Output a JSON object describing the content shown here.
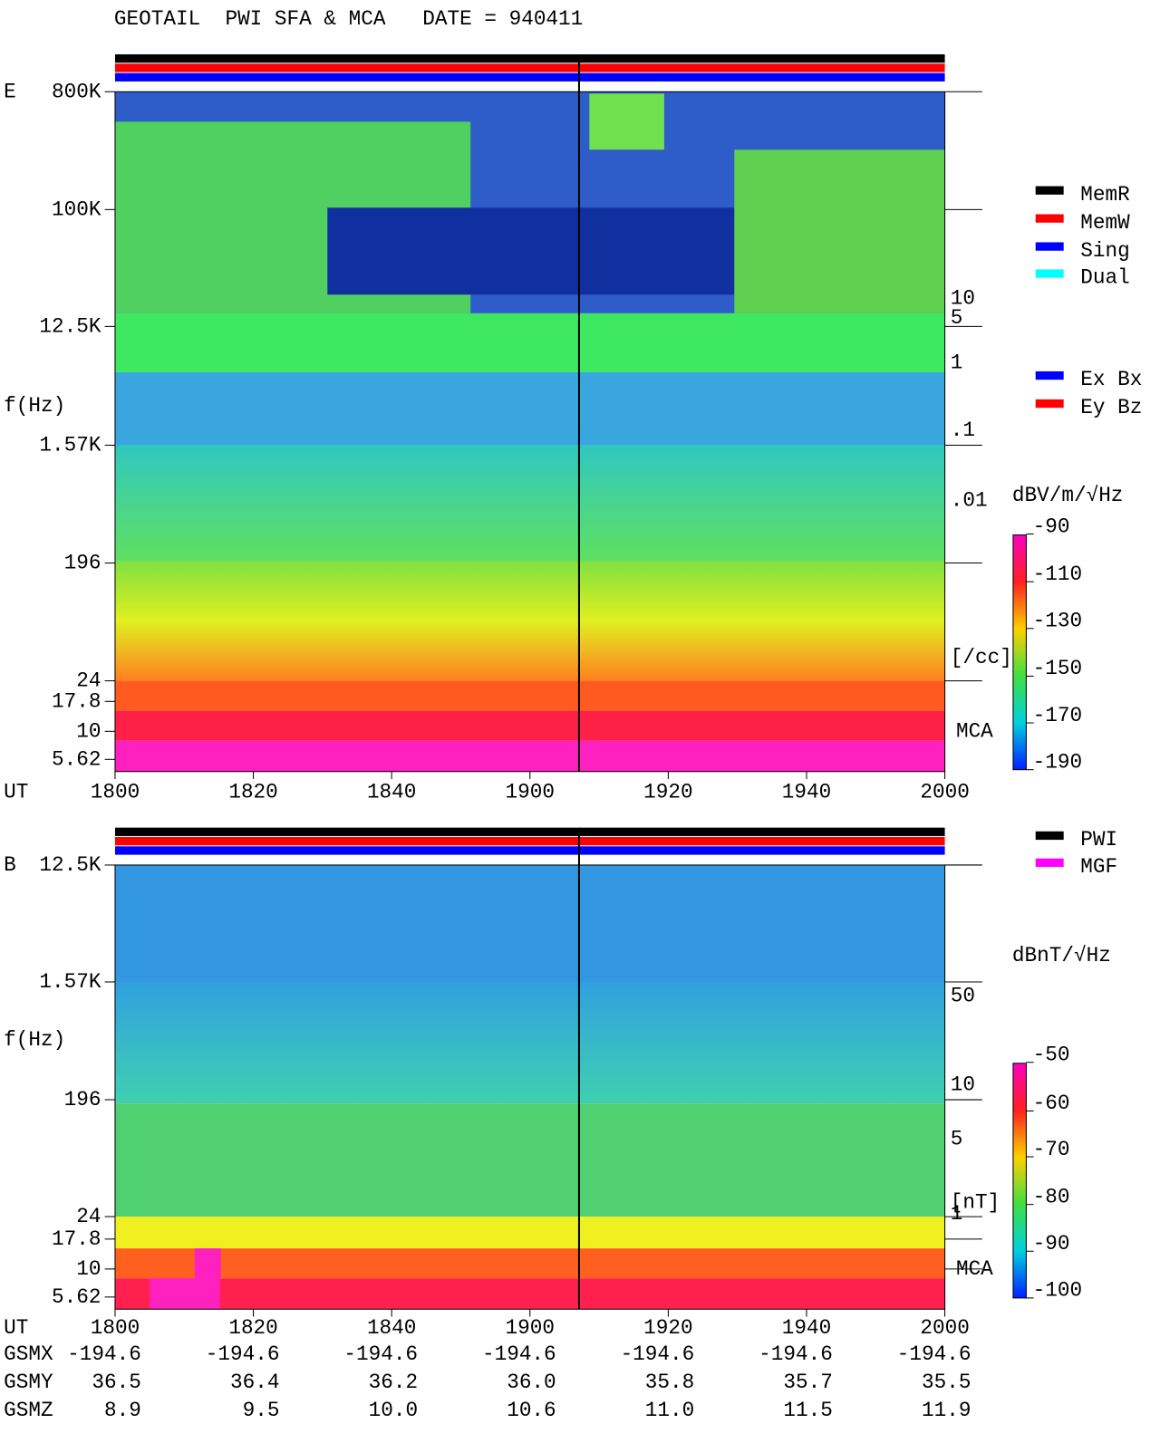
{
  "title": "GEOTAIL  PWI SFA & MCA   DATE = 940411",
  "panels": [
    {
      "label": "E",
      "y_axis_label": "f(Hz)",
      "y_ticks": [
        "800K",
        "100K",
        "12.5K",
        "1.57K",
        "196",
        "24",
        "17.8",
        "10",
        "5.62"
      ],
      "x_axis_label": "UT",
      "x_ticks": [
        "1800",
        "1820",
        "1840",
        "1900",
        "1920",
        "1940",
        "2000"
      ],
      "right_scale": [
        "10",
        "5",
        "1",
        ".1",
        ".01",
        "[/cc]"
      ],
      "mca_label": "MCA",
      "legend": [
        {
          "name": "MemR",
          "color": "#000000"
        },
        {
          "name": "MemW",
          "color": "#ff0000"
        },
        {
          "name": "Sing",
          "color": "#0000ff"
        },
        {
          "name": "Dual",
          "color": "#00ffff"
        }
      ],
      "legend2": [
        {
          "name": "Ex Bx",
          "color": "#0000ff"
        },
        {
          "name": "Ey Bz",
          "color": "#ff0000"
        }
      ],
      "colorbar": {
        "unit_label": "dBV/m/√Hz",
        "ticks": [
          "-90",
          "-110",
          "-130",
          "-150",
          "-170",
          "-190"
        ]
      }
    },
    {
      "label": "B",
      "y_axis_label": "f(Hz)",
      "y_ticks": [
        "12.5K",
        "1.57K",
        "196",
        "24",
        "17.8",
        "10",
        "5.62"
      ],
      "x_axis_label": "UT",
      "x_ticks": [
        "1800",
        "1820",
        "1840",
        "1900",
        "1920",
        "1940",
        "2000"
      ],
      "right_scale": [
        "50",
        "10",
        "5",
        "1",
        "[nT]"
      ],
      "mca_label": "MCA",
      "legend": [
        {
          "name": "PWI",
          "color": "#000000"
        },
        {
          "name": "MGF",
          "color": "#ff00ff"
        }
      ],
      "colorbar": {
        "unit_label": "dBnT/√Hz",
        "ticks": [
          "-50",
          "-60",
          "-70",
          "-80",
          "-90",
          "-100"
        ]
      }
    }
  ],
  "orbit": {
    "rows": [
      {
        "name": "GSMX",
        "values": [
          "-194.6",
          "-194.6",
          "-194.6",
          "-194.6",
          "-194.6",
          "-194.6",
          "-194.6"
        ]
      },
      {
        "name": "GSMY",
        "values": [
          "36.5",
          "36.4",
          "36.2",
          "36.0",
          "35.8",
          "35.7",
          "35.5"
        ]
      },
      {
        "name": "GSMZ",
        "values": [
          "8.9",
          "9.5",
          "10.0",
          "10.6",
          "11.0",
          "11.5",
          "11.9"
        ]
      }
    ]
  }
}
